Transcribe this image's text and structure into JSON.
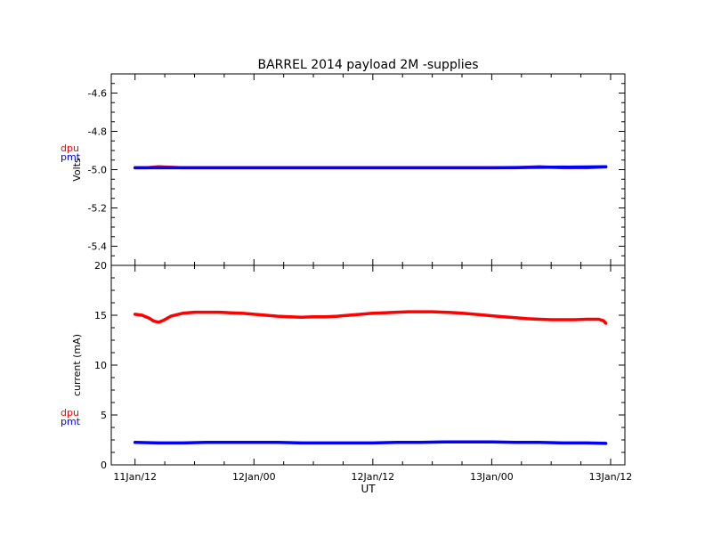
{
  "chart_data": [
    {
      "type": "line",
      "title": "BARREL 2014 payload 2M -supplies",
      "xlabel": "",
      "ylabel": "Volts",
      "xlim": [
        -0.1,
        2.06
      ],
      "ylim": [
        -5.5,
        -4.5
      ],
      "yticks": [
        -5.4,
        -5.2,
        -5.0,
        -4.8,
        -4.6
      ],
      "ytick_labels": [
        "-5.4",
        "-5.2",
        "-5.0",
        "-4.8",
        "-4.6"
      ],
      "legend": {
        "placement": "left-outside",
        "entries": [
          "dpu",
          "pmt"
        ]
      },
      "grid": false,
      "series": [
        {
          "name": "dpu",
          "color": "#ff0000",
          "x": [
            0.0,
            0.05,
            0.1,
            0.2,
            0.3,
            0.4,
            0.5,
            0.6,
            0.7,
            0.8,
            0.9,
            1.0,
            1.1,
            1.2,
            1.3,
            1.4,
            1.5,
            1.6,
            1.7,
            1.8,
            1.9,
            1.98
          ],
          "y": [
            -4.99,
            -4.99,
            -4.985,
            -4.99,
            -4.99,
            -4.99,
            -4.99,
            -4.99,
            -4.99,
            -4.99,
            -4.99,
            -4.99,
            -4.99,
            -4.99,
            -4.99,
            -4.99,
            -4.99,
            -4.99,
            -4.985,
            -4.99,
            -4.99,
            -4.985
          ]
        },
        {
          "name": "pmt",
          "color": "#0000ff",
          "x": [
            0.0,
            0.5,
            1.0,
            1.5,
            1.98
          ],
          "y": [
            -4.99,
            -4.99,
            -4.99,
            -4.99,
            -4.985
          ]
        }
      ]
    },
    {
      "type": "line",
      "title": "",
      "xlabel": "UT",
      "ylabel": "current (mA)",
      "xlim": [
        -0.1,
        2.06
      ],
      "ylim": [
        0,
        20
      ],
      "yticks": [
        0,
        5,
        10,
        15,
        20
      ],
      "ytick_labels": [
        "0",
        "5",
        "10",
        "15",
        "20"
      ],
      "xticks": [
        0,
        0.5,
        1.0,
        1.5,
        2.0
      ],
      "xtick_labels": [
        "11Jan/12",
        "12Jan/00",
        "12Jan/12",
        "13Jan/00",
        "13Jan/12"
      ],
      "legend": {
        "placement": "left-outside",
        "entries": [
          "dpu",
          "pmt"
        ]
      },
      "grid": false,
      "series": [
        {
          "name": "dpu",
          "color": "#ff0000",
          "x": [
            0.0,
            0.03,
            0.06,
            0.08,
            0.1,
            0.12,
            0.15,
            0.2,
            0.25,
            0.3,
            0.35,
            0.4,
            0.45,
            0.5,
            0.55,
            0.6,
            0.65,
            0.7,
            0.75,
            0.8,
            0.85,
            0.9,
            0.95,
            1.0,
            1.05,
            1.1,
            1.15,
            1.2,
            1.25,
            1.3,
            1.35,
            1.4,
            1.45,
            1.5,
            1.55,
            1.6,
            1.65,
            1.7,
            1.75,
            1.8,
            1.85,
            1.9,
            1.95,
            1.97,
            1.98
          ],
          "y": [
            15.1,
            15.0,
            14.7,
            14.4,
            14.3,
            14.5,
            14.9,
            15.2,
            15.3,
            15.3,
            15.3,
            15.25,
            15.2,
            15.1,
            15.0,
            14.9,
            14.85,
            14.8,
            14.85,
            14.85,
            14.9,
            15.0,
            15.1,
            15.2,
            15.25,
            15.3,
            15.35,
            15.35,
            15.35,
            15.3,
            15.25,
            15.15,
            15.05,
            14.95,
            14.85,
            14.75,
            14.65,
            14.6,
            14.55,
            14.55,
            14.55,
            14.6,
            14.6,
            14.45,
            14.2
          ]
        },
        {
          "name": "pmt",
          "color": "#0000ff",
          "x": [
            0.0,
            0.1,
            0.2,
            0.3,
            0.4,
            0.5,
            0.6,
            0.7,
            0.8,
            0.9,
            1.0,
            1.1,
            1.2,
            1.3,
            1.4,
            1.5,
            1.6,
            1.7,
            1.8,
            1.9,
            1.98
          ],
          "y": [
            2.25,
            2.2,
            2.2,
            2.25,
            2.25,
            2.25,
            2.25,
            2.2,
            2.2,
            2.2,
            2.2,
            2.25,
            2.25,
            2.3,
            2.3,
            2.3,
            2.25,
            2.25,
            2.2,
            2.2,
            2.15
          ]
        }
      ]
    }
  ]
}
